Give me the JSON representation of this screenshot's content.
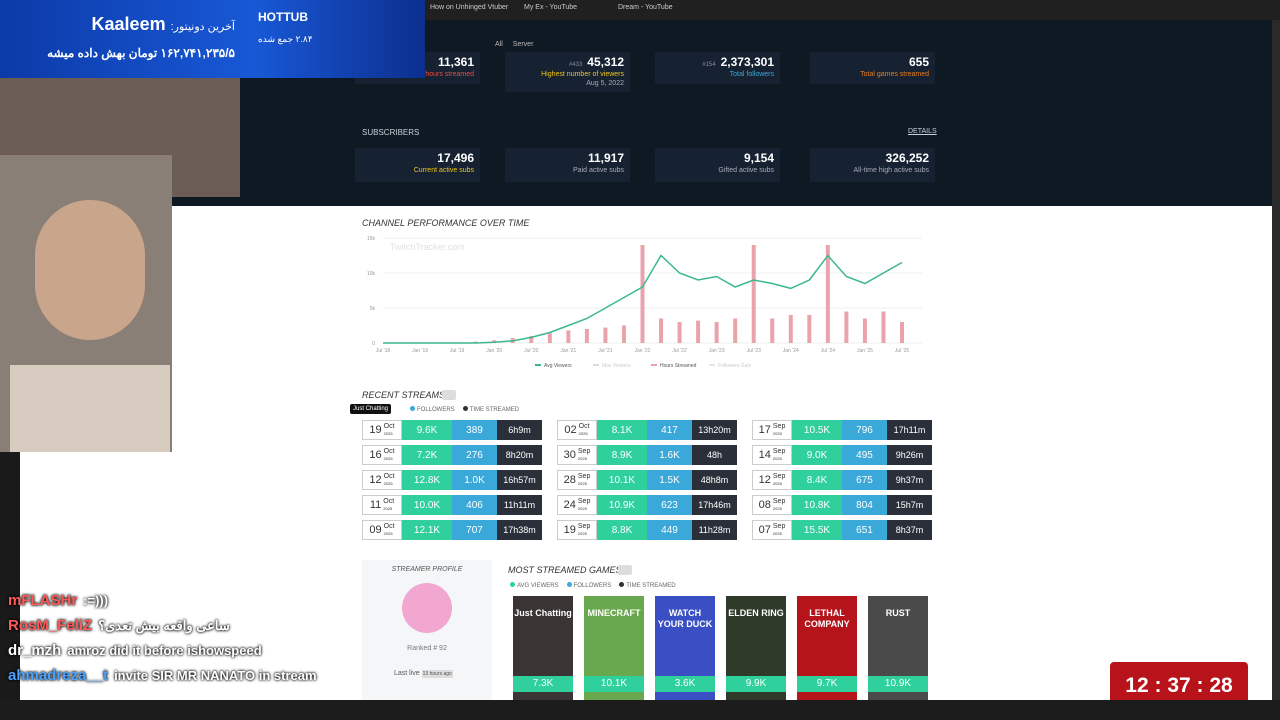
{
  "overlay": {
    "donor_label": "آخرین دونیتور:",
    "donor_name": "Kaaleem",
    "donation_text": "۱۶۲,۷۴۱,۲۳۵/۵ تومان بهش داده میشه",
    "goal_title": "HOTTUB",
    "goal_text": "۲.۸۴ جمع شده"
  },
  "browser": {
    "tabs": [
      "How on Unhinged Vtuber",
      "My Ex - YouTube",
      "Dream - YouTube"
    ],
    "bookmarks": [
      "All",
      "Server"
    ]
  },
  "stats": [
    {
      "value": "11,361",
      "label": "Total hours streamed"
    },
    {
      "rank": "#433",
      "value": "45,312",
      "label": "Highest number of viewers",
      "date": "Aug 5, 2022"
    },
    {
      "rank": "#154",
      "value": "2,373,301",
      "label": "Total followers"
    },
    {
      "value": "655",
      "label": "Total games streamed"
    }
  ],
  "subscribers": {
    "title": "SUBSCRIBERS",
    "link": "DETAILS",
    "items": [
      {
        "value": "17,496",
        "label": "Current active subs"
      },
      {
        "value": "11,917",
        "label": "Paid active subs"
      },
      {
        "value": "9,154",
        "label": "Gifted active subs"
      },
      {
        "value": "326,252",
        "label": "All-time high active subs"
      }
    ]
  },
  "performance_chart": {
    "type": "combo",
    "title": "CHANNEL PERFORMANCE OVER TIME",
    "watermark": "TwitchTracker.com",
    "categories": [
      "Jul '18",
      null,
      "Jan '19",
      null,
      "Jul '19",
      null,
      "Jan '20",
      null,
      "Jul '20",
      null,
      "Jan '21",
      null,
      "Jul '21",
      null,
      "Jan '22",
      null,
      "Jul '22",
      null,
      "Jan '23",
      null,
      "Jul '23",
      null,
      "Jan '24",
      null,
      "Jul '24",
      null,
      "Jan '25",
      null,
      "Jul '25"
    ],
    "ylim": [
      0,
      15000
    ],
    "yticks": [
      {
        "value": 0,
        "label": "0"
      },
      {
        "value": 5000,
        "label": "5k"
      },
      {
        "value": 10000,
        "label": "10k"
      },
      {
        "value": 15000,
        "label": "15k"
      }
    ],
    "series": [
      {
        "name": "Avg Viewers",
        "color": "#3cb88e",
        "kind": "line",
        "values": [
          0,
          0,
          0,
          0,
          0,
          0,
          100,
          300,
          800,
          1500,
          2500,
          3500,
          5000,
          6500,
          8000,
          12500,
          10000,
          9000,
          9500,
          8000,
          9000,
          8500,
          7800,
          9000,
          12500,
          9500,
          8500,
          10000,
          11500
        ]
      },
      {
        "name": "Max Viewers",
        "color": "#d8dde3",
        "kind": "hidden"
      },
      {
        "name": "Hours Streamed",
        "color": "#eaa3ab",
        "kind": "bar",
        "values": [
          0,
          0,
          0,
          0,
          0,
          200,
          400,
          700,
          1000,
          1400,
          1800,
          2000,
          2200,
          2500,
          14000,
          3500,
          3000,
          3200,
          3000,
          3500,
          14000,
          3500,
          4000,
          4000,
          14000,
          4500,
          3500,
          4500,
          3000
        ]
      },
      {
        "name": "Followers Gain",
        "color": "#e3e6ea",
        "kind": "hidden"
      }
    ]
  },
  "recent_streams": {
    "title": "RECENT STREAMS",
    "tooltip": "Just Chatting",
    "legend": [
      "FOLLOWERS",
      "TIME STREAMED"
    ],
    "year": "2025",
    "columns": [
      [
        {
          "day": "19",
          "month": "Oct",
          "viewers": "9.6K",
          "followers": "389",
          "duration": "6h9m"
        },
        {
          "day": "16",
          "month": "Oct",
          "viewers": "7.2K",
          "followers": "276",
          "duration": "8h20m"
        },
        {
          "day": "12",
          "month": "Oct",
          "viewers": "12.8K",
          "followers": "1.0K",
          "duration": "16h57m"
        },
        {
          "day": "11",
          "month": "Oct",
          "viewers": "10.0K",
          "followers": "406",
          "duration": "11h11m"
        },
        {
          "day": "09",
          "month": "Oct",
          "viewers": "12.1K",
          "followers": "707",
          "duration": "17h38m"
        }
      ],
      [
        {
          "day": "02",
          "month": "Oct",
          "viewers": "8.1K",
          "followers": "417",
          "duration": "13h20m"
        },
        {
          "day": "30",
          "month": "Sep",
          "viewers": "8.9K",
          "followers": "1.6K",
          "duration": "48h"
        },
        {
          "day": "28",
          "month": "Sep",
          "viewers": "10.1K",
          "followers": "1.5K",
          "duration": "48h8m"
        },
        {
          "day": "24",
          "month": "Sep",
          "viewers": "10.9K",
          "followers": "623",
          "duration": "17h46m"
        },
        {
          "day": "19",
          "month": "Sep",
          "viewers": "8.8K",
          "followers": "449",
          "duration": "11h28m"
        }
      ],
      [
        {
          "day": "17",
          "month": "Sep",
          "viewers": "10.5K",
          "followers": "796",
          "duration": "17h11m"
        },
        {
          "day": "14",
          "month": "Sep",
          "viewers": "9.0K",
          "followers": "495",
          "duration": "9h26m"
        },
        {
          "day": "12",
          "month": "Sep",
          "viewers": "8.4K",
          "followers": "675",
          "duration": "9h37m"
        },
        {
          "day": "08",
          "month": "Sep",
          "viewers": "10.8K",
          "followers": "804",
          "duration": "15h7m"
        },
        {
          "day": "07",
          "month": "Sep",
          "viewers": "15.5K",
          "followers": "651",
          "duration": "8h37m"
        }
      ]
    ]
  },
  "profile": {
    "title": "STREAMER PROFILE",
    "rank": "Ranked # 92",
    "last_live_label": "Last live",
    "last_live": "13 hours ago"
  },
  "games": {
    "title": "MOST STREAMED GAMES",
    "legend": [
      "AVG VIEWERS",
      "FOLLOWERS",
      "TIME STREAMED"
    ],
    "items": [
      {
        "art": "Just Chatting",
        "viewers": "7.3K",
        "color": "#3b3434"
      },
      {
        "art": "MINECRAFT",
        "viewers": "10.1K",
        "color": "#6aa84f"
      },
      {
        "art": "WATCH YOUR DUCK",
        "viewers": "3.6K",
        "color": "#3b4fc4"
      },
      {
        "art": "ELDEN RING",
        "viewers": "9.9K",
        "color": "#2f3a2a"
      },
      {
        "art": "LETHAL COMPANY",
        "viewers": "9.7K",
        "color": "#b5141a"
      },
      {
        "art": "RUST",
        "viewers": "10.9K",
        "color": "#4a4a4a"
      }
    ]
  },
  "chat": [
    {
      "user": "mFLASHr",
      "message": ":=)))",
      "color": "#ff5a5a"
    },
    {
      "user": "RosM_FeliZ",
      "message": "ساعی واقعه بیش تعدی؟",
      "color": "#ff5a5a"
    },
    {
      "user": "dr_mzh",
      "message": "amroz did it before ishowspeed",
      "color": "#ffffff"
    },
    {
      "user": "ahmadreza__t",
      "message": "invite SIR MR NANATO in stream",
      "color": "#4aa3ff"
    }
  ],
  "timer": "12 : 37 : 28"
}
